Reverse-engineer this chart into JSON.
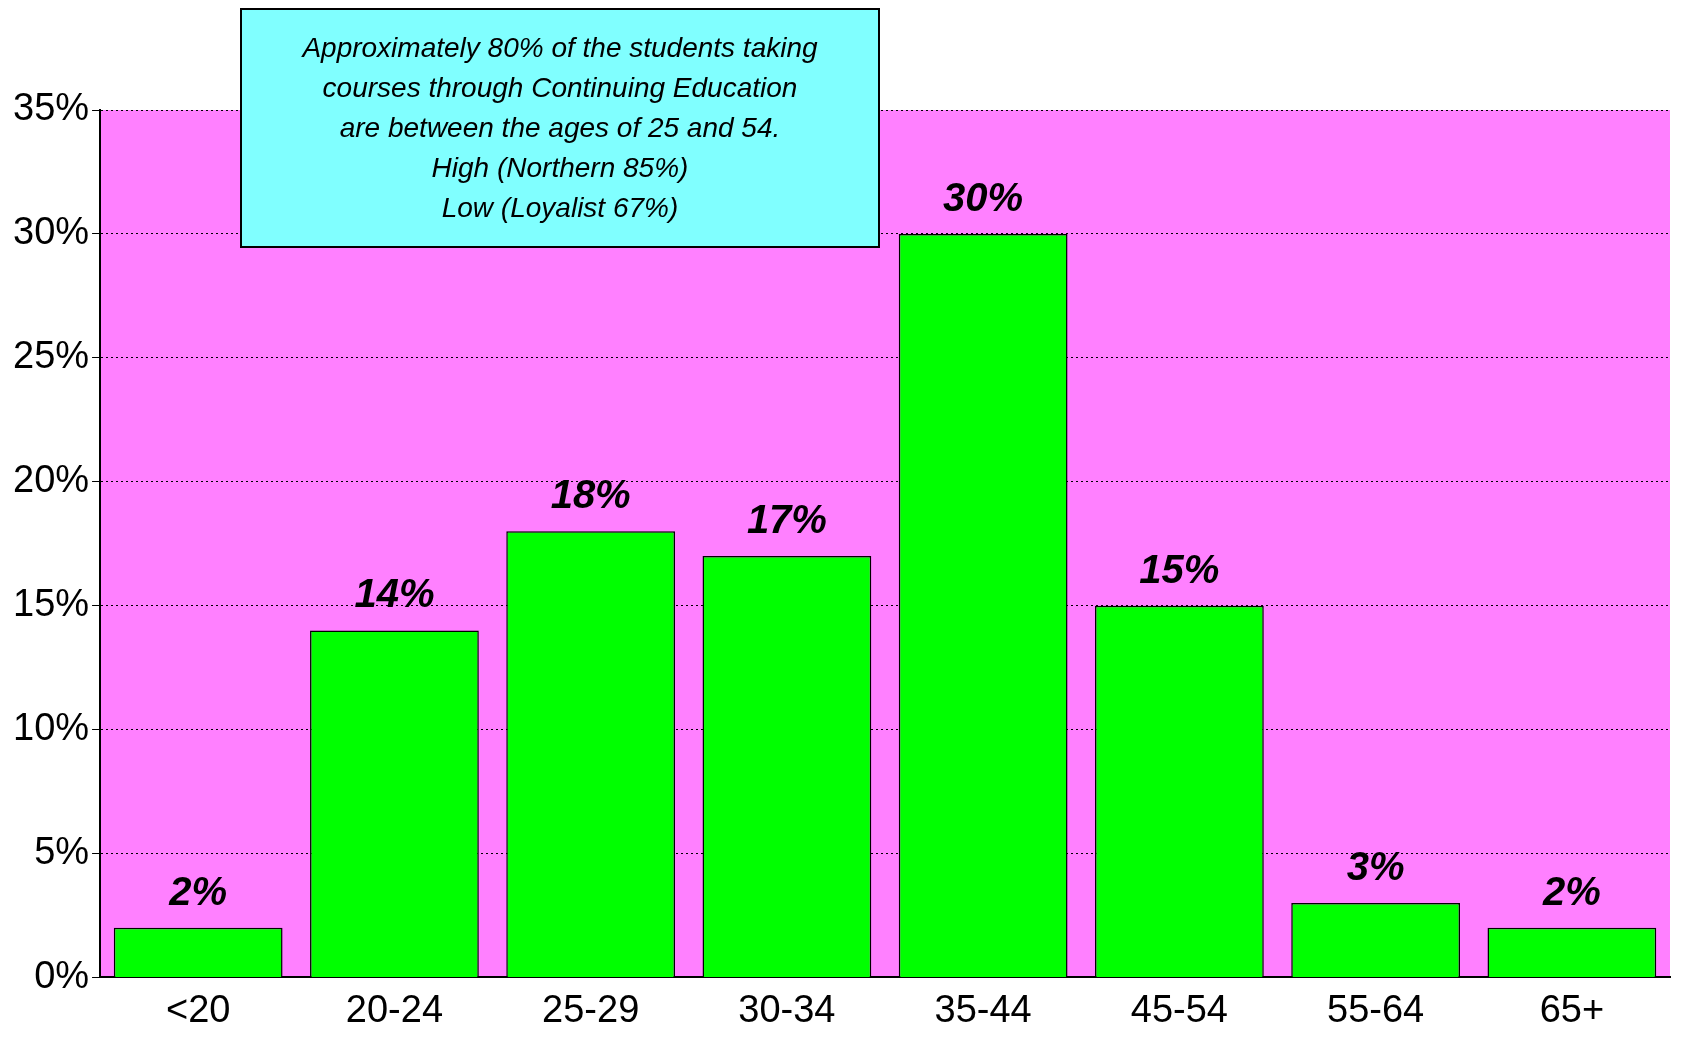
{
  "chart_data": {
    "type": "bar",
    "categories": [
      "<20",
      "20-24",
      "25-29",
      "30-34",
      "35-44",
      "45-54",
      "55-64",
      "65+"
    ],
    "values": [
      2,
      14,
      18,
      17,
      30,
      15,
      3,
      2
    ],
    "value_labels": [
      "2%",
      "14%",
      "18%",
      "17%",
      "30%",
      "15%",
      "3%",
      "2%"
    ],
    "color": "#00ff00",
    "ylim": [
      0,
      35
    ],
    "yticks": [
      {
        "value": 0,
        "label": "0%"
      },
      {
        "value": 5,
        "label": "5%"
      },
      {
        "value": 10,
        "label": "10%"
      },
      {
        "value": 15,
        "label": "15%"
      },
      {
        "value": 20,
        "label": "20%"
      },
      {
        "value": 25,
        "label": "25%"
      },
      {
        "value": 30,
        "label": "30%"
      },
      {
        "value": 35,
        "label": "35%"
      }
    ],
    "grid": "y",
    "annotations": [
      "Approximately 80% of the students taking",
      "courses through Continuing Education",
      "are between the ages of 25 and 54.",
      "High (Northern 85%)",
      "Low (Loyalist 67%)"
    ]
  }
}
